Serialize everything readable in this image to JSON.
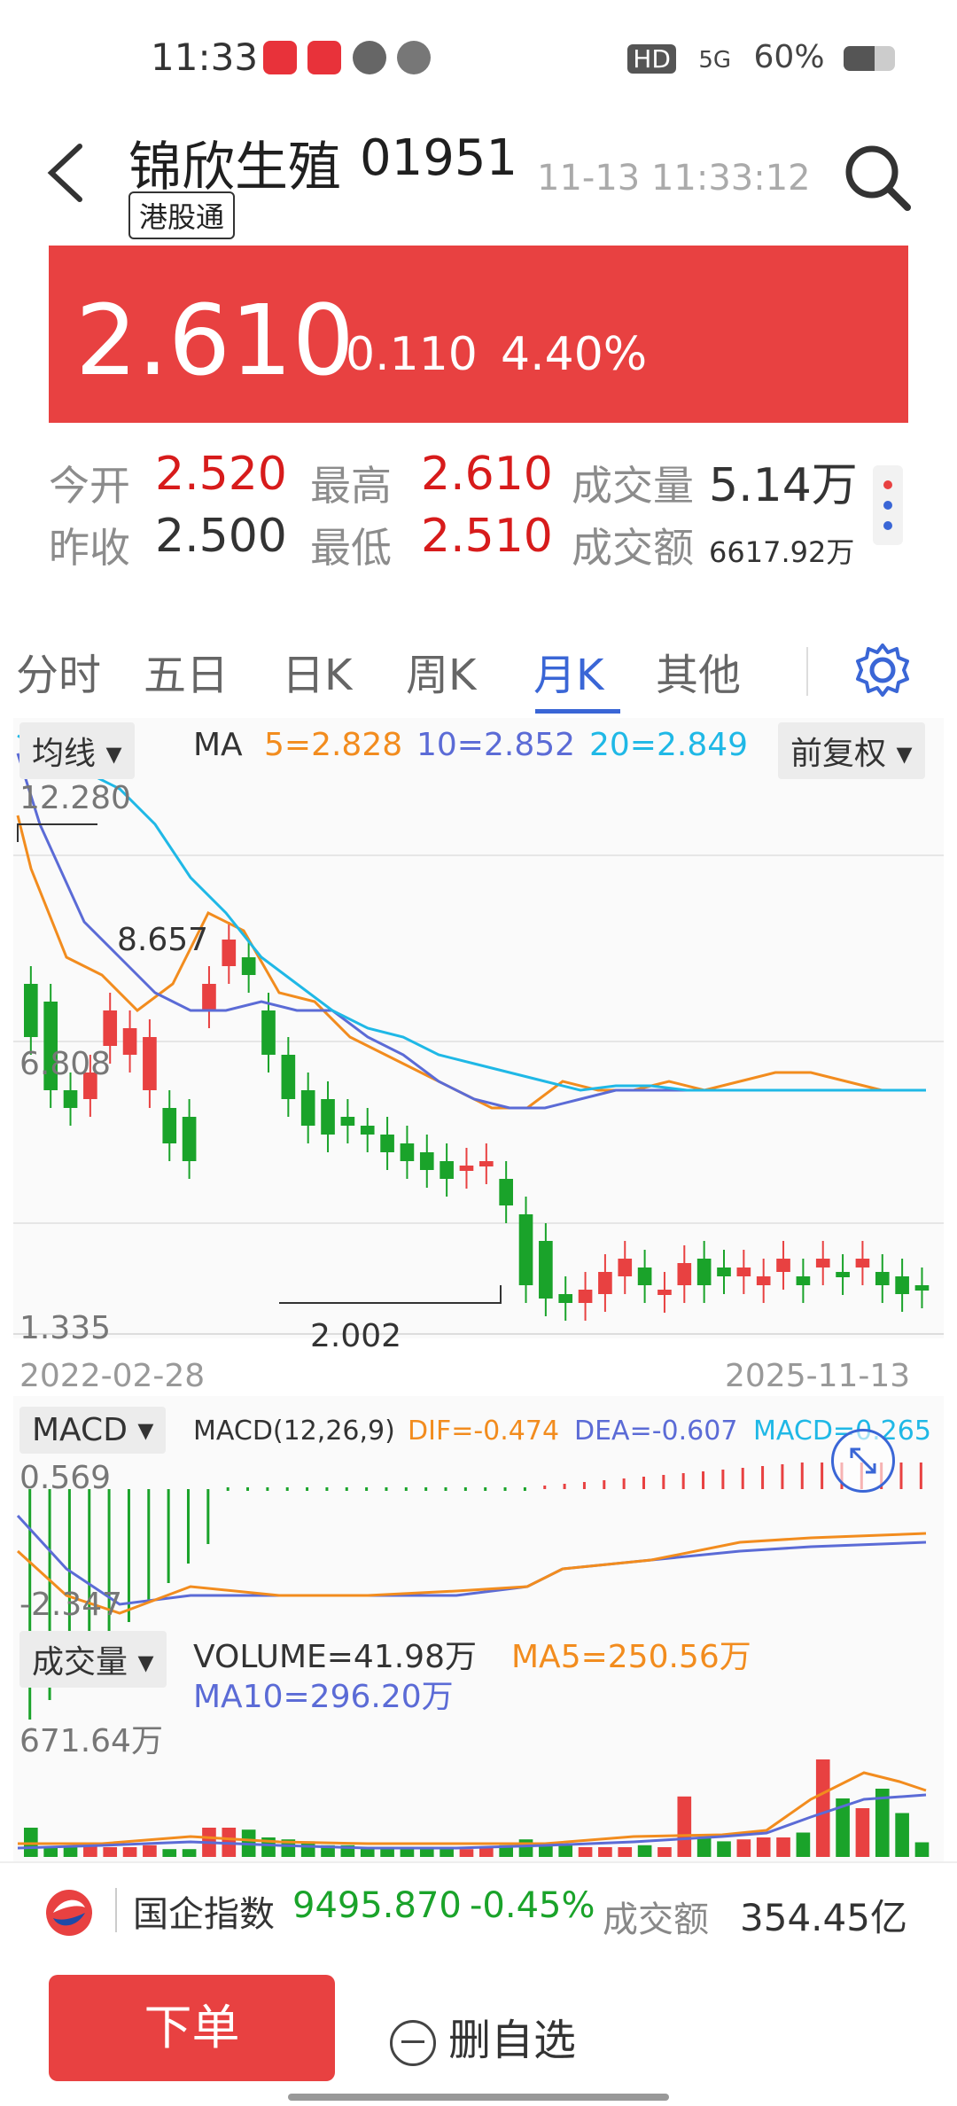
{
  "status_bar": {
    "time": "11:33",
    "hd": "HD",
    "signal": "5G",
    "battery": "60%",
    "apps": [
      "小红书",
      "video",
      "pinwheel",
      "planet"
    ]
  },
  "header": {
    "name": "锦欣生殖",
    "code": "01951",
    "tag": "港股通",
    "timestamp": "11-13 11:33:12"
  },
  "quote": {
    "price": "2.610",
    "change": "0.110",
    "change_pct": "4.40%",
    "open_label": "今开",
    "open": "2.520",
    "high_label": "最高",
    "high": "2.610",
    "vol_label": "成交量",
    "vol": "5.14万",
    "prev_label": "昨收",
    "prev": "2.500",
    "low_label": "最低",
    "low": "2.510",
    "amount_label": "成交额",
    "amount": "6617.92万"
  },
  "tabs": [
    "分时",
    "五日",
    "日K",
    "周K",
    "月K",
    "其他"
  ],
  "active_tab": "月K",
  "kline": {
    "indicator_dd": "均线",
    "ma_label": "MA",
    "ma5": "5=2.828",
    "ma10": "10=2.852",
    "ma20": "20=2.849",
    "adjust_dd": "前复权",
    "y_top": "12.280",
    "y_mid": "6.808",
    "y_bot": "1.335",
    "max_label": "8.657",
    "min_label": "2.002",
    "date_start": "2022-02-28",
    "date_end": "2025-11-13"
  },
  "macd": {
    "dd": "MACD",
    "params": "MACD(12,26,9)",
    "dif": "DIF=-0.474",
    "dea": "DEA=-0.607",
    "macd": "MACD=0.265",
    "y_top": "0.569",
    "y_bot": "-2.347"
  },
  "volume": {
    "dd": "成交量",
    "vol": "VOLUME=41.98万",
    "ma5": "MA5=250.56万",
    "ma10": "MA10=296.20万",
    "y_top": "671.64万"
  },
  "index_bar": {
    "name": "国企指数",
    "value": "9495.870",
    "change": "-0.45%",
    "amount_label": "成交额",
    "amount": "354.45亿"
  },
  "actions": {
    "order": "下单",
    "remove_fav": "删自选"
  },
  "colors": {
    "up": "#e84141",
    "down": "#1aa32a",
    "ma5": "#f28c1e",
    "ma10": "#5b6bd6",
    "ma20": "#1fb8e6",
    "accent": "#3a66d6"
  },
  "chart_data": {
    "type": "candlestick",
    "title": "",
    "x": [
      "2022-02-28",
      "2025-11-13"
    ],
    "ylim": [
      1.335,
      12.28
    ],
    "high_marker": 8.657,
    "low_marker": 2.002
  }
}
